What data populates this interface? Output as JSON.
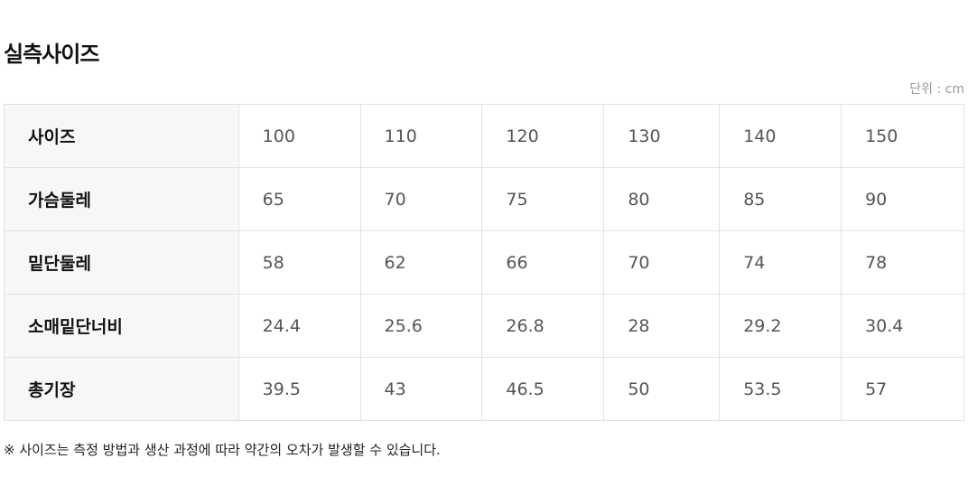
{
  "title": "실측사이즈",
  "unit": "단위 : cm",
  "rows": [
    {
      "label": "사이즈",
      "values": [
        "100",
        "110",
        "120",
        "130",
        "140",
        "150"
      ]
    },
    {
      "label": "가슴둘레",
      "values": [
        "65",
        "70",
        "75",
        "80",
        "85",
        "90"
      ]
    },
    {
      "label": "밑단둘레",
      "values": [
        "58",
        "62",
        "66",
        "70",
        "74",
        "78"
      ]
    },
    {
      "label": "소매밑단너비",
      "values": [
        "24.4",
        "25.6",
        "26.8",
        "28",
        "29.2",
        "30.4"
      ]
    },
    {
      "label": "총기장",
      "values": [
        "39.5",
        "43",
        "46.5",
        "50",
        "53.5",
        "57"
      ]
    }
  ],
  "note": "※ 사이즈는 측정 방법과 생산 과정에 따라 약간의 오차가 발생할 수 있습니다."
}
